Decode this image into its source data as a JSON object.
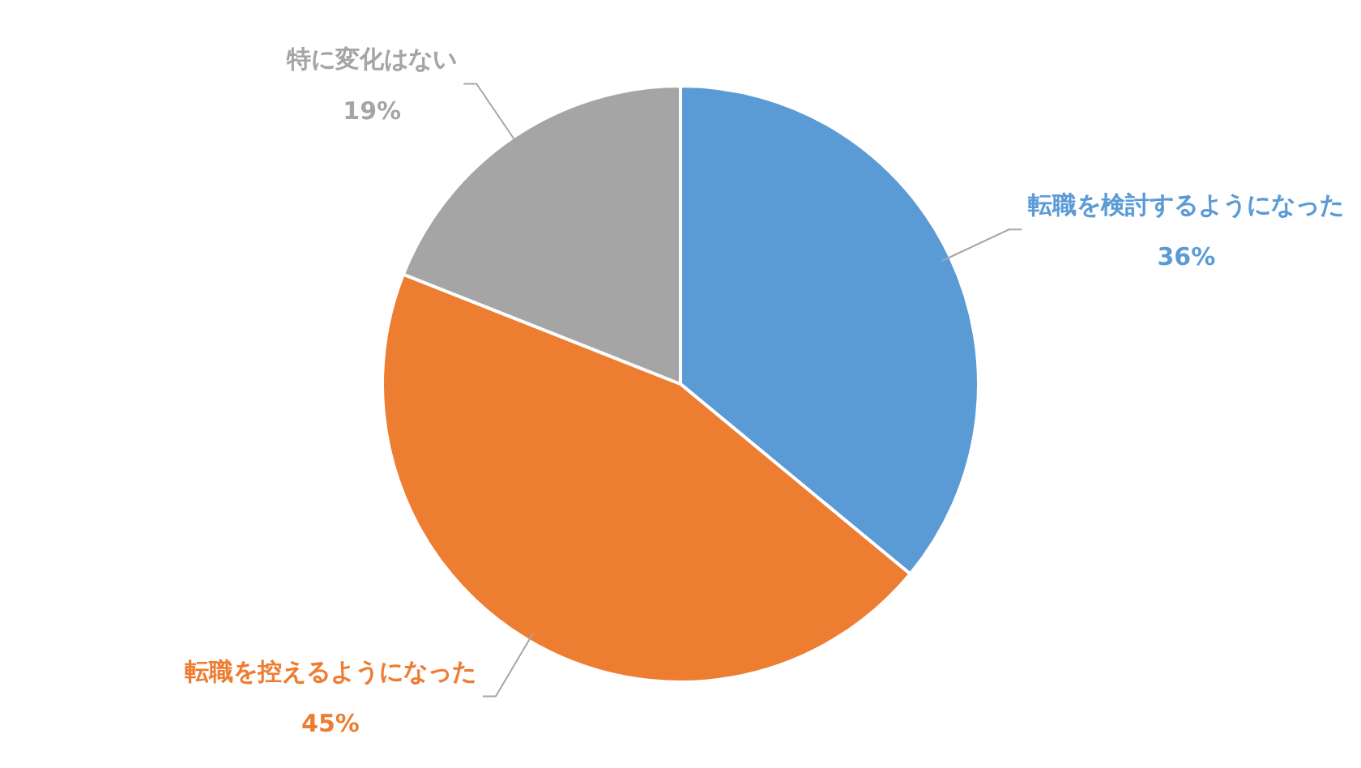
{
  "chart_data": {
    "type": "pie",
    "categories": [
      "転職を検討するようになった",
      "転職を控えるようになった",
      "特に変化はない"
    ],
    "values": [
      36,
      45,
      19
    ],
    "colors": [
      "#5b9bd5",
      "#ed7d31",
      "#a5a5a5"
    ],
    "value_labels": [
      "36%",
      "45%",
      "19%"
    ],
    "legend": false
  }
}
